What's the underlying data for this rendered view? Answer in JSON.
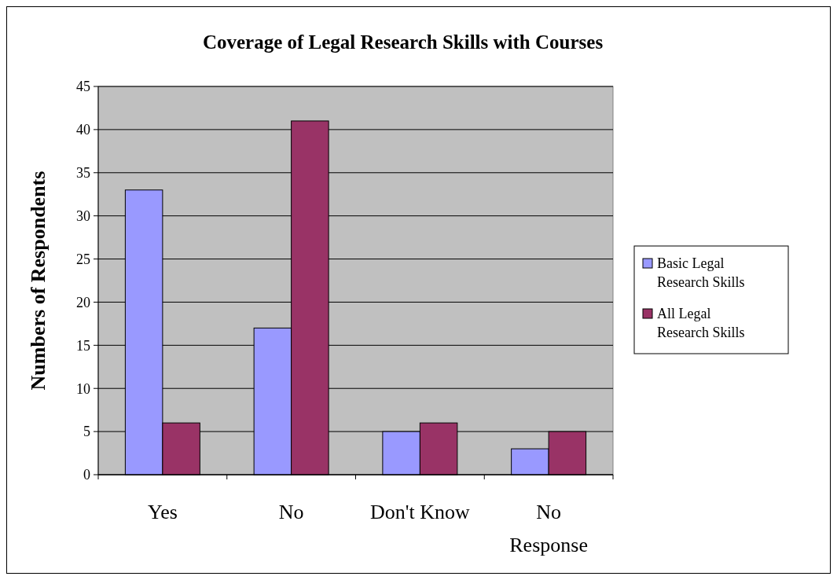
{
  "chart_data": {
    "type": "bar",
    "title": "Coverage of Legal Research Skills with Courses",
    "ylabel": "Numbers of Respondents",
    "categories": [
      "Yes",
      "No",
      "Don't Know",
      "No Response"
    ],
    "series": [
      {
        "name": "Basic Legal Research Skills",
        "color": "#9999ff",
        "values": [
          33,
          17,
          5,
          3
        ]
      },
      {
        "name": "All Legal Research Skills",
        "color": "#993366",
        "values": [
          6,
          41,
          6,
          5
        ]
      }
    ],
    "ylim": [
      0,
      45
    ],
    "yticks": [
      0,
      5,
      10,
      15,
      20,
      25,
      30,
      35,
      40,
      45
    ],
    "grid": "y",
    "legend": "right"
  }
}
